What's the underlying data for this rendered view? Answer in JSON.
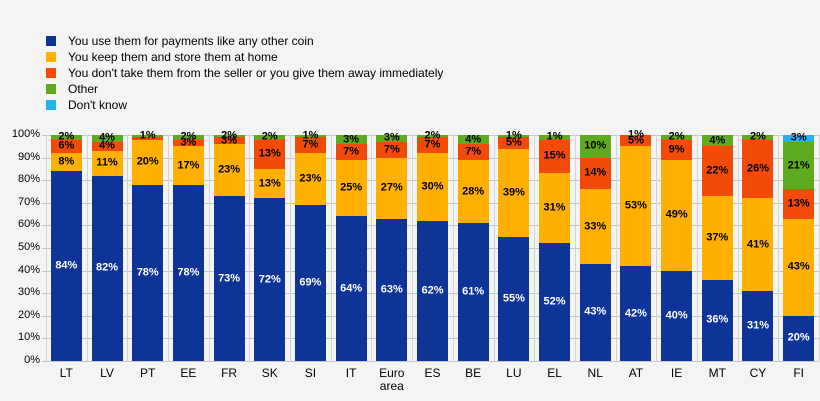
{
  "chart_data": {
    "type": "bar",
    "stacked": true,
    "title": "",
    "xlabel": "",
    "ylabel": "",
    "ylim": [
      0,
      100
    ],
    "grid": "horizontal and vertical separators",
    "legend_position": "top-left",
    "y_ticks": [
      "0%",
      "10%",
      "20%",
      "30%",
      "40%",
      "50%",
      "60%",
      "70%",
      "80%",
      "90%",
      "100%"
    ],
    "categories": [
      "LT",
      "LV",
      "PT",
      "EE",
      "FR",
      "SK",
      "SI",
      "IT",
      "Euro area",
      "ES",
      "BE",
      "LU",
      "EL",
      "NL",
      "AT",
      "IE",
      "MT",
      "CY",
      "FI"
    ],
    "series": [
      {
        "name": "You use them for payments like any other coin",
        "color": "#0e3498",
        "label_color": "#ffffff",
        "values": [
          84,
          82,
          78,
          78,
          73,
          72,
          69,
          64,
          63,
          62,
          61,
          55,
          52,
          43,
          42,
          40,
          36,
          31,
          20
        ],
        "labels": [
          "84%",
          "82%",
          "78%",
          "78%",
          "73%",
          "72%",
          "69%",
          "64%",
          "63%",
          "62%",
          "61%",
          "55%",
          "52%",
          "43%",
          "42%",
          "40%",
          "36%",
          "31%",
          "20%"
        ]
      },
      {
        "name": "You keep them and store them at home",
        "color": "#ffb000",
        "label_color": "#000000",
        "values": [
          8,
          11,
          20,
          17,
          23,
          13,
          23,
          25,
          27,
          30,
          28,
          39,
          31,
          33,
          53,
          49,
          37,
          41,
          43
        ],
        "labels": [
          "8%",
          "11%",
          "20%",
          "17%",
          "23%",
          "13%",
          "23%",
          "25%",
          "27%",
          "30%",
          "28%",
          "39%",
          "31%",
          "33%",
          "53%",
          "49%",
          "37%",
          "41%",
          "43%"
        ]
      },
      {
        "name": "You don't take them from the seller or you give them away immediately",
        "color": "#f24b09",
        "label_color": "#000000",
        "values": [
          6,
          4,
          1,
          3,
          3,
          13,
          7,
          7,
          7,
          7,
          7,
          5,
          15,
          14,
          5,
          9,
          22,
          26,
          13
        ],
        "labels": [
          "6%",
          "4%",
          "",
          "3%",
          "3%",
          "13%",
          "7%",
          "7%",
          "7%",
          "7%",
          "7%",
          "5%",
          "15%",
          "14%",
          "5%",
          "9%",
          "22%",
          "26%",
          "13%"
        ]
      },
      {
        "name": "Other",
        "color": "#5faa1e",
        "label_color": "#000000",
        "values": [
          2,
          4,
          1,
          2,
          2,
          2,
          1,
          3,
          3,
          2,
          4,
          1,
          1,
          10,
          1,
          2,
          4,
          2,
          21
        ],
        "labels": [
          "2%",
          "4%",
          "1%",
          "2%",
          "2%",
          "2%",
          "1%",
          "3%",
          "3%",
          "2%",
          "4%",
          "1%",
          "1%",
          "10%",
          "1%",
          "2%",
          "4%",
          "2%",
          "21%"
        ]
      },
      {
        "name": "Don't know",
        "color": "#25b2ea",
        "label_color": "#000000",
        "values": [
          0,
          0,
          0,
          1,
          0,
          0,
          1,
          0,
          0,
          0,
          0,
          1,
          0,
          0,
          0,
          0,
          0,
          1,
          3
        ],
        "labels": [
          "",
          "",
          "",
          "",
          "",
          "",
          "",
          "",
          "",
          "",
          "",
          "",
          "",
          "",
          "",
          "",
          "",
          "",
          "3%"
        ]
      }
    ]
  }
}
